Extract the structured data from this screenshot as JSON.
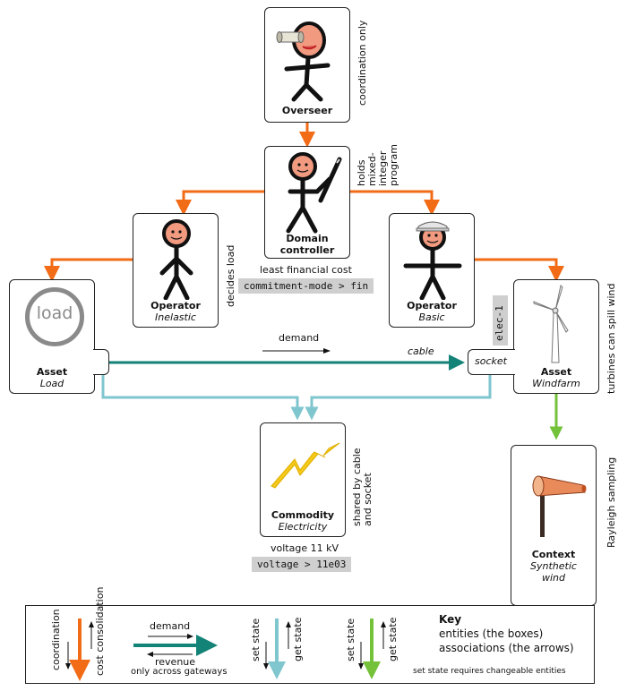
{
  "entities": {
    "overseer": {
      "title": "Overseer",
      "note": "coordination only"
    },
    "domain_controller": {
      "title_line1": "Domain",
      "title_line2": "controller",
      "note_lines": [
        "holds",
        "mixed-",
        "integer",
        "program"
      ],
      "caption": "least financial cost",
      "code": "commitment-mode > fin"
    },
    "operator_inelastic": {
      "title": "Operator",
      "subtitle": "Inelastic",
      "note": "decides load"
    },
    "operator_basic": {
      "title": "Operator",
      "subtitle": "Basic"
    },
    "asset_load": {
      "title": "Asset",
      "subtitle": "Load",
      "icon_text": "load"
    },
    "asset_windfarm": {
      "title": "Asset",
      "subtitle": "Windfarm",
      "note": "turbines can spill wind",
      "tag": "elec-1",
      "socket": "socket"
    },
    "commodity": {
      "title": "Commodity",
      "subtitle": "Electricity",
      "note_lines": [
        "shared by cable",
        "and socket"
      ],
      "caption": "voltage 11 kV",
      "code": "voltage > 11e03"
    },
    "context": {
      "title": "Context",
      "subtitle_line1": "Synthetic",
      "subtitle_line2": "wind",
      "note": "Rayleigh sampling"
    }
  },
  "links": {
    "demand": "demand",
    "cable": "cable"
  },
  "key": {
    "heading": "Key",
    "line1": "entities (the boxes)",
    "line2": "associations (the arrows)",
    "coordination": "coordination",
    "cost_consolidation": "cost consolidation",
    "demand": "demand",
    "revenue": "revenue",
    "gateways": "only across gateways",
    "set_state_1": "set state",
    "get_state_1": "get state",
    "set_state_2": "set state",
    "get_state_2": "get state",
    "footnote": "set state requires changeable entities"
  },
  "colors": {
    "coordination": "#f26b16",
    "cable": "#138277",
    "commodity_link": "#7fc6cf",
    "context_link": "#74c23a",
    "code_bg": "#cfcfcf"
  }
}
